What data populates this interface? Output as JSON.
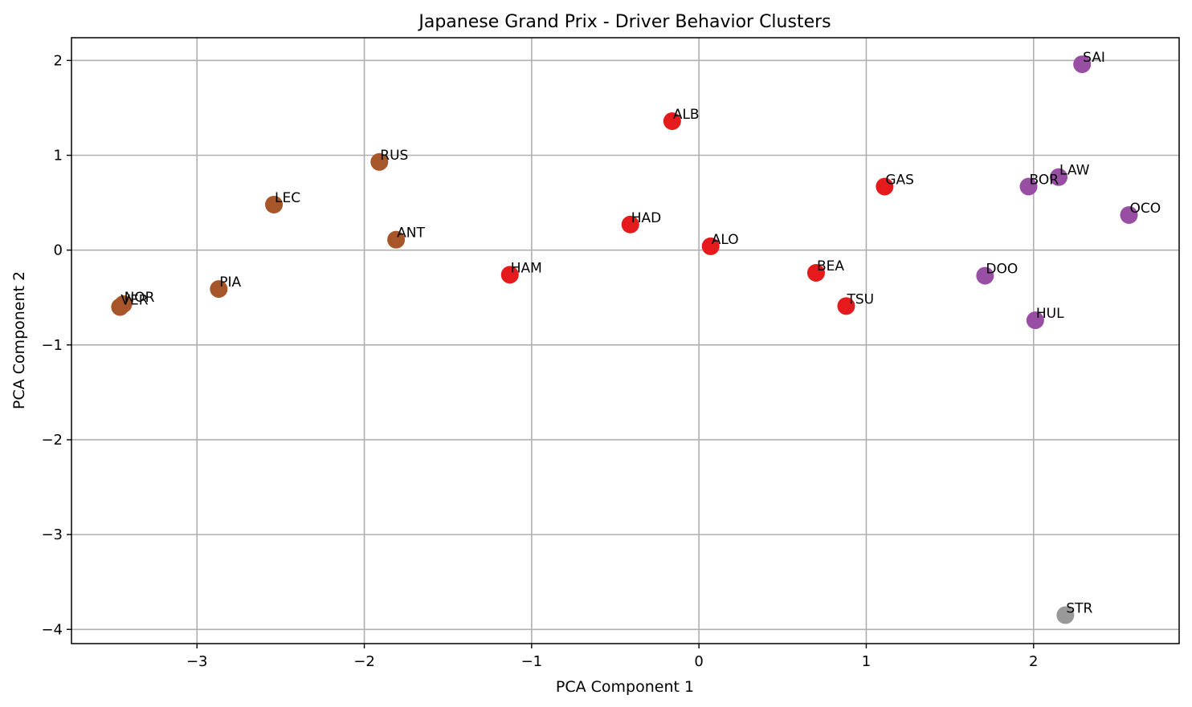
{
  "chart_data": {
    "type": "scatter",
    "title": "Japanese Grand Prix - Driver Behavior Clusters",
    "xlabel": "PCA Component 1",
    "ylabel": "PCA Component 2",
    "xlim": [
      -3.75,
      2.87
    ],
    "ylim": [
      -4.15,
      2.24
    ],
    "xticks": [
      -3,
      -2,
      -1,
      0,
      1,
      2
    ],
    "yticks": [
      -4,
      -3,
      -2,
      -1,
      0,
      1,
      2
    ],
    "xtick_labels": [
      "−3",
      "−2",
      "−1",
      "0",
      "1",
      "2"
    ],
    "ytick_labels": [
      "−4",
      "−3",
      "−2",
      "−1",
      "0",
      "1",
      "2"
    ],
    "grid": true,
    "legend": "none",
    "cluster_colors": [
      "#A65628",
      "#E41A1C",
      "#984EA3",
      "#999999"
    ],
    "points": [
      {
        "label": "NOR",
        "x": -3.44,
        "y": -0.57,
        "cluster": 0
      },
      {
        "label": "VER",
        "x": -3.46,
        "y": -0.6,
        "cluster": 0
      },
      {
        "label": "PIA",
        "x": -2.87,
        "y": -0.41,
        "cluster": 0
      },
      {
        "label": "LEC",
        "x": -2.54,
        "y": 0.48,
        "cluster": 0
      },
      {
        "label": "RUS",
        "x": -1.91,
        "y": 0.93,
        "cluster": 0
      },
      {
        "label": "ANT",
        "x": -1.81,
        "y": 0.11,
        "cluster": 0
      },
      {
        "label": "HAM",
        "x": -1.13,
        "y": -0.26,
        "cluster": 1
      },
      {
        "label": "HAD",
        "x": -0.41,
        "y": 0.27,
        "cluster": 1
      },
      {
        "label": "ALB",
        "x": -0.16,
        "y": 1.36,
        "cluster": 1
      },
      {
        "label": "ALO",
        "x": 0.07,
        "y": 0.04,
        "cluster": 1
      },
      {
        "label": "BEA",
        "x": 0.7,
        "y": -0.24,
        "cluster": 1
      },
      {
        "label": "TSU",
        "x": 0.88,
        "y": -0.59,
        "cluster": 1
      },
      {
        "label": "GAS",
        "x": 1.11,
        "y": 0.67,
        "cluster": 1
      },
      {
        "label": "DOO",
        "x": 1.71,
        "y": -0.27,
        "cluster": 2
      },
      {
        "label": "BOR",
        "x": 1.97,
        "y": 0.67,
        "cluster": 2
      },
      {
        "label": "HUL",
        "x": 2.01,
        "y": -0.74,
        "cluster": 2
      },
      {
        "label": "LAW",
        "x": 2.15,
        "y": 0.77,
        "cluster": 2
      },
      {
        "label": "SAI",
        "x": 2.29,
        "y": 1.96,
        "cluster": 2
      },
      {
        "label": "OCO",
        "x": 2.57,
        "y": 0.37,
        "cluster": 2
      },
      {
        "label": "STR",
        "x": 2.19,
        "y": -3.85,
        "cluster": 3
      }
    ]
  }
}
